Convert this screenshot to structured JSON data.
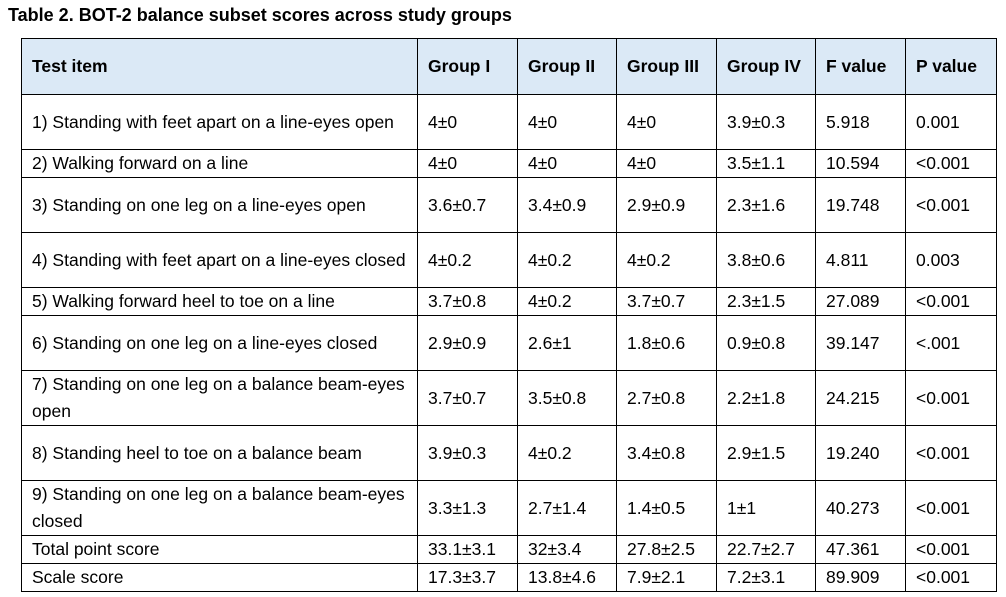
{
  "caption": "Table 2. BOT-2 balance subset scores across study groups",
  "header": {
    "test_item": "Test item",
    "g1": "Group I",
    "g2": "Group II",
    "g3": "Group III",
    "g4": "Group IV",
    "f": "F value",
    "p": "P value"
  },
  "rows": [
    {
      "item": "1) Standing with feet apart on a line-eyes open",
      "g1": "4±0",
      "g2": "4±0",
      "g3": "4±0",
      "g4": "3.9±0.3",
      "f": "5.918",
      "p": "0.001"
    },
    {
      "item": "2) Walking forward on a line",
      "g1": "4±0",
      "g2": "4±0",
      "g3": "4±0",
      "g4": "3.5±1.1",
      "f": "10.594",
      "p": "<0.001"
    },
    {
      "item": "3) Standing on one leg on a line-eyes open",
      "g1": "3.6±0.7",
      "g2": "3.4±0.9",
      "g3": "2.9±0.9",
      "g4": "2.3±1.6",
      "f": "19.748",
      "p": "<0.001"
    },
    {
      "item": "4) Standing with feet apart on a line-eyes closed",
      "g1": "4±0.2",
      "g2": "4±0.2",
      "g3": "4±0.2",
      "g4": "3.8±0.6",
      "f": "4.811",
      "p": "0.003"
    },
    {
      "item": "5) Walking forward heel to toe on a line",
      "g1": "3.7±0.8",
      "g2": "4±0.2",
      "g3": "3.7±0.7",
      "g4": "2.3±1.5",
      "f": "27.089",
      "p": "<0.001"
    },
    {
      "item": "6) Standing on one leg on a line-eyes closed",
      "g1": "2.9±0.9",
      "g2": "2.6±1",
      "g3": "1.8±0.6",
      "g4": "0.9±0.8",
      "f": "39.147",
      "p": "<.001"
    },
    {
      "item": "7) Standing on one leg on a balance beam-eyes open",
      "g1": "3.7±0.7",
      "g2": "3.5±0.8",
      "g3": "2.7±0.8",
      "g4": "2.2±1.8",
      "f": "24.215",
      "p": "<0.001"
    },
    {
      "item": "8) Standing heel to toe on a balance beam",
      "g1": "3.9±0.3",
      "g2": "4±0.2",
      "g3": "3.4±0.8",
      "g4": "2.9±1.5",
      "f": "19.240",
      "p": "<0.001"
    },
    {
      "item": "9) Standing on one leg on a balance beam-eyes closed",
      "g1": "3.3±1.3",
      "g2": "2.7±1.4",
      "g3": "1.4±0.5",
      "g4": "1±1",
      "f": "40.273",
      "p": "<0.001"
    },
    {
      "item": "Total point score",
      "g1": "33.1±3.1",
      "g2": "32±3.4",
      "g3": "27.8±2.5",
      "g4": "22.7±2.7",
      "f": "47.361",
      "p": "<0.001"
    },
    {
      "item": "Scale score",
      "g1": "17.3±3.7",
      "g2": "13.8±4.6",
      "g3": "7.9±2.1",
      "g4": "7.2±3.1",
      "f": "89.909",
      "p": "<0.001"
    }
  ]
}
